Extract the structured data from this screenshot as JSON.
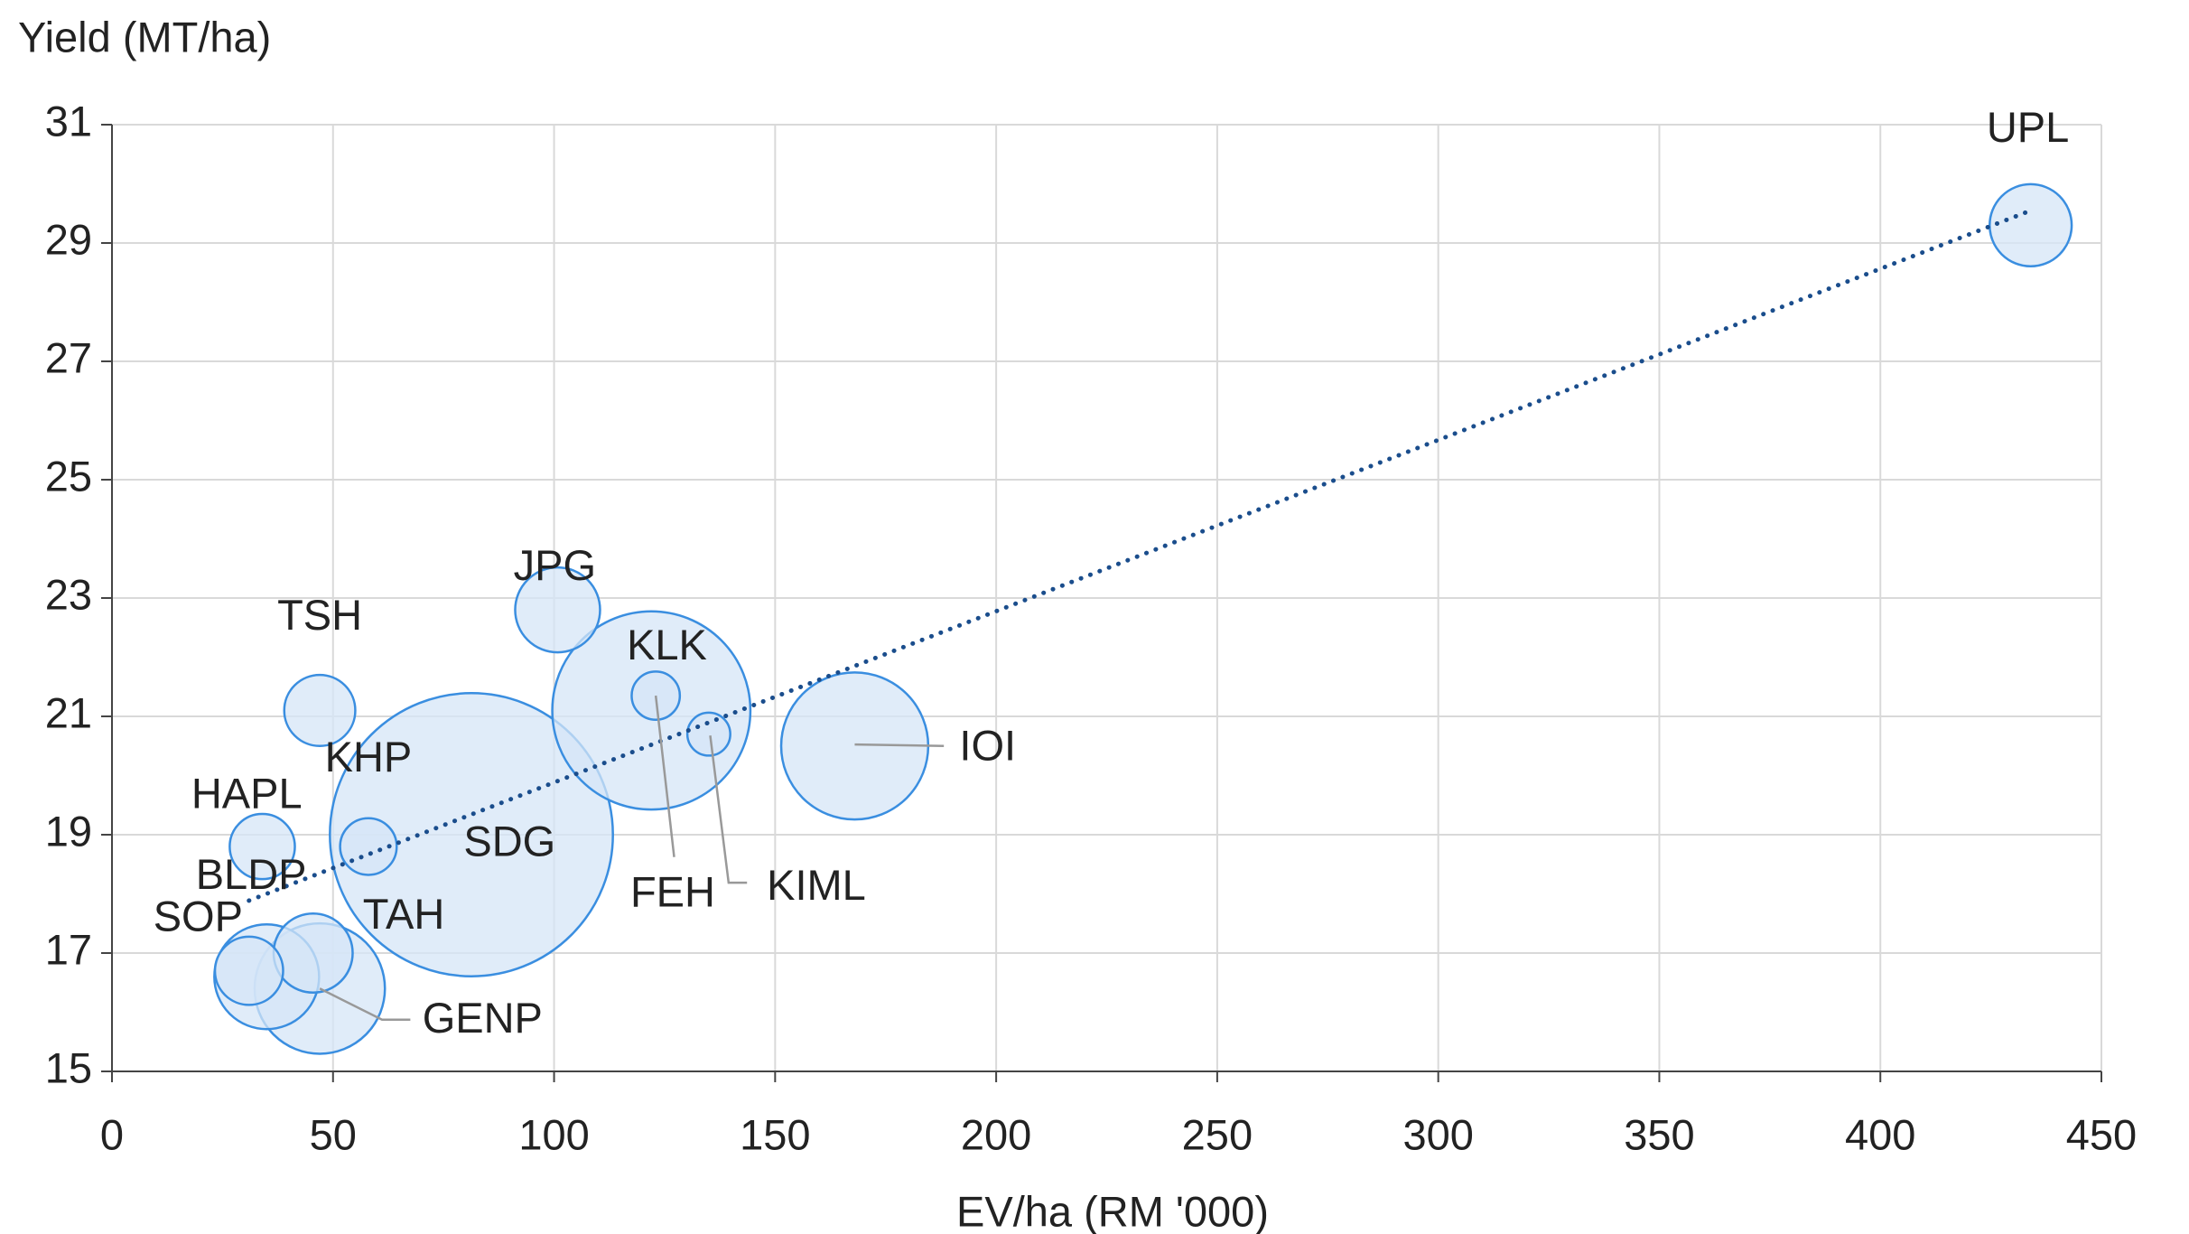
{
  "chart_data": {
    "type": "bubble",
    "x_label": "EV/ha (RM '000)",
    "y_label": "Yield (MT/ha)",
    "labels": [
      "UPL",
      "JPG",
      "TSH",
      "KLK",
      "FEH",
      "KIML",
      "IOI",
      "SDG",
      "KHP",
      "HAPL",
      "BLDP",
      "SOP",
      "TAH",
      "GENP"
    ],
    "x": [
      434,
      100.8,
      47,
      122,
      123,
      135,
      168,
      81.3,
      58,
      34,
      35,
      31,
      45.5,
      47
    ],
    "y": [
      29.3,
      22.8,
      21.1,
      21.1,
      21.35,
      20.7,
      20.5,
      19.0,
      18.8,
      18.8,
      16.6,
      16.7,
      17.0,
      16.4
    ],
    "sizes": [
      8.4,
      9,
      6.3,
      49,
      2.9,
      2.3,
      27,
      100,
      4,
      5.3,
      13.7,
      5.8,
      7.8,
      21.2
    ],
    "color": "#3a8ee0",
    "fill": "#d6e6f7",
    "trendline": true,
    "trend_color": "#1a4d8c",
    "xlim": [
      0,
      450
    ],
    "xticks": [
      0,
      50,
      100,
      150,
      200,
      250,
      300,
      350,
      400,
      450
    ],
    "ylim": [
      15,
      31
    ],
    "yticks": [
      15,
      17,
      19,
      21,
      23,
      25,
      27,
      29,
      31
    ],
    "grid": true
  }
}
